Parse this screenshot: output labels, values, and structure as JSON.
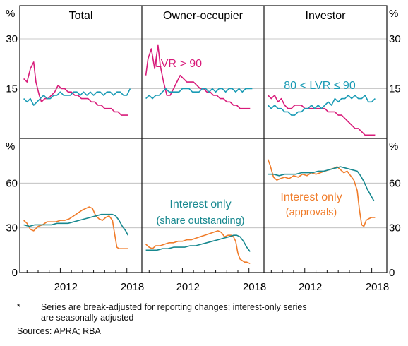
{
  "chart_data": {
    "type": "line",
    "title": "",
    "panel_titles": [
      "Total",
      "Owner-occupier",
      "Investor"
    ],
    "x_ticks": [
      "2012",
      "2018"
    ],
    "xlim": [
      2008.6,
      2019.1
    ],
    "top_row": {
      "unit": "%",
      "ylim": [
        0,
        40
      ],
      "yticks": [
        "15",
        "30"
      ],
      "grid": true,
      "annotations": [
        {
          "text": "LVR > 90",
          "panel": 1,
          "series": "lvr_gt_90"
        },
        {
          "text": "80 < LVR ≤ 90",
          "panel": 2,
          "series": "lvr_80_90"
        }
      ],
      "panels": [
        {
          "series": [
            {
              "id": "lvr_gt_90",
              "color": "#d81b7a",
              "x": [
                2008.7,
                2009.0,
                2009.3,
                2009.6,
                2009.8,
                2010.1,
                2010.3,
                2010.6,
                2010.9,
                2011.2,
                2011.5,
                2011.8,
                2012.1,
                2012.4,
                2012.7,
                2013.0,
                2013.3,
                2013.6,
                2013.9,
                2014.2,
                2014.5,
                2014.8,
                2015.1,
                2015.4,
                2015.7,
                2016.0,
                2016.3,
                2016.6,
                2016.9,
                2017.2,
                2017.5,
                2017.8,
                2018.1
              ],
              "y": [
                18,
                17,
                21,
                23,
                17,
                13,
                11,
                12,
                12,
                13,
                14,
                16,
                15,
                15,
                14,
                14,
                13,
                13,
                12,
                12,
                12,
                11,
                11,
                10,
                10,
                9,
                9,
                9,
                8,
                8,
                7,
                7,
                7
              ]
            },
            {
              "id": "lvr_80_90",
              "color": "#1a9bb5",
              "x": [
                2008.7,
                2009.0,
                2009.3,
                2009.6,
                2009.9,
                2010.2,
                2010.5,
                2010.8,
                2011.1,
                2011.4,
                2011.7,
                2012.0,
                2012.3,
                2012.6,
                2012.9,
                2013.2,
                2013.5,
                2013.8,
                2014.1,
                2014.4,
                2014.7,
                2015.0,
                2015.3,
                2015.6,
                2015.9,
                2016.2,
                2016.5,
                2016.8,
                2017.1,
                2017.4,
                2017.7,
                2018.0,
                2018.3
              ],
              "y": [
                12,
                11,
                12,
                10,
                11,
                12,
                13,
                12,
                12,
                13,
                13,
                14,
                13,
                13,
                13,
                14,
                14,
                13,
                14,
                13,
                14,
                13,
                14,
                14,
                13,
                14,
                14,
                13,
                14,
                14,
                13,
                13,
                15
              ]
            }
          ]
        },
        {
          "series": [
            {
              "id": "lvr_gt_90",
              "color": "#d81b7a",
              "x": [
                2008.7,
                2008.9,
                2009.2,
                2009.5,
                2009.8,
                2010.0,
                2010.3,
                2010.6,
                2010.9,
                2011.2,
                2011.5,
                2011.8,
                2012.1,
                2012.4,
                2012.7,
                2013.0,
                2013.3,
                2013.6,
                2013.9,
                2014.2,
                2014.5,
                2014.8,
                2015.1,
                2015.4,
                2015.7,
                2016.0,
                2016.3,
                2016.6,
                2016.9,
                2017.2,
                2017.5,
                2017.8,
                2018.1
              ],
              "y": [
                19,
                24,
                27,
                21,
                28,
                22,
                17,
                13,
                13,
                15,
                17,
                19,
                18,
                17,
                17,
                17,
                16,
                15,
                15,
                14,
                14,
                13,
                13,
                12,
                12,
                11,
                11,
                10,
                10,
                9,
                9,
                9,
                9
              ]
            },
            {
              "id": "lvr_80_90",
              "color": "#1a9bb5",
              "x": [
                2008.7,
                2009.0,
                2009.3,
                2009.6,
                2009.9,
                2010.2,
                2010.5,
                2010.8,
                2011.1,
                2011.4,
                2011.7,
                2012.0,
                2012.3,
                2012.6,
                2012.9,
                2013.2,
                2013.5,
                2013.8,
                2014.1,
                2014.4,
                2014.7,
                2015.0,
                2015.3,
                2015.6,
                2015.9,
                2016.2,
                2016.5,
                2016.8,
                2017.1,
                2017.4,
                2017.7,
                2018.0,
                2018.3
              ],
              "y": [
                12,
                13,
                12,
                13,
                13,
                14,
                15,
                14,
                14,
                14,
                14,
                15,
                15,
                15,
                14,
                14,
                14,
                15,
                15,
                14,
                15,
                14,
                15,
                15,
                14,
                15,
                15,
                14,
                15,
                14,
                15,
                15,
                15
              ]
            }
          ]
        },
        {
          "series": [
            {
              "id": "lvr_gt_90",
              "color": "#d81b7a",
              "x": [
                2008.7,
                2009.0,
                2009.3,
                2009.6,
                2009.9,
                2010.2,
                2010.5,
                2010.8,
                2011.1,
                2011.4,
                2011.7,
                2012.0,
                2012.3,
                2012.6,
                2012.9,
                2013.2,
                2013.5,
                2013.8,
                2014.1,
                2014.4,
                2014.7,
                2015.0,
                2015.3,
                2015.6,
                2015.9,
                2016.2,
                2016.5,
                2016.8,
                2017.1,
                2017.4,
                2017.7,
                2018.0,
                2018.3
              ],
              "y": [
                13,
                12,
                13,
                11,
                12,
                10,
                9,
                9,
                10,
                10,
                10,
                9,
                9,
                9,
                9,
                9,
                9,
                9,
                8,
                8,
                8,
                7,
                7,
                6,
                5,
                4,
                3,
                3,
                2,
                1,
                1,
                1,
                1
              ]
            },
            {
              "id": "lvr_80_90",
              "color": "#1a9bb5",
              "x": [
                2008.7,
                2009.0,
                2009.3,
                2009.6,
                2009.9,
                2010.2,
                2010.5,
                2010.8,
                2011.1,
                2011.4,
                2011.7,
                2012.0,
                2012.3,
                2012.6,
                2012.9,
                2013.2,
                2013.5,
                2013.8,
                2014.1,
                2014.4,
                2014.7,
                2015.0,
                2015.3,
                2015.6,
                2015.9,
                2016.2,
                2016.5,
                2016.8,
                2017.1,
                2017.4,
                2017.7,
                2018.0,
                2018.3
              ],
              "y": [
                10,
                9,
                10,
                9,
                9,
                8,
                8,
                7,
                7,
                8,
                8,
                9,
                9,
                10,
                9,
                10,
                9,
                10,
                11,
                10,
                12,
                11,
                12,
                12,
                13,
                12,
                13,
                12,
                12,
                13,
                11,
                11,
                12
              ]
            }
          ]
        }
      ]
    },
    "bottom_row": {
      "unit": "%",
      "ylim": [
        0,
        90
      ],
      "yticks": [
        "0",
        "30",
        "60"
      ],
      "grid": true,
      "annotations": [
        {
          "text": "Interest only",
          "panel": 1,
          "series": "io_share"
        },
        {
          "text": "(share outstanding)",
          "panel": 1,
          "series": "io_share"
        },
        {
          "text": "Interest only",
          "panel": 2,
          "series": "io_approvals"
        },
        {
          "text": "(approvals)",
          "panel": 2,
          "series": "io_approvals"
        }
      ],
      "panels": [
        {
          "series": [
            {
              "id": "io_approvals",
              "color": "#f07c2a",
              "x": [
                2008.7,
                2009.0,
                2009.3,
                2009.6,
                2010.0,
                2010.4,
                2010.8,
                2011.2,
                2011.6,
                2012.0,
                2012.4,
                2012.8,
                2013.2,
                2013.6,
                2014.0,
                2014.3,
                2014.6,
                2014.9,
                2015.2,
                2015.5,
                2015.8,
                2016.1,
                2016.4,
                2016.7,
                2016.9,
                2017.1,
                2017.3,
                2017.5,
                2017.8,
                2018.1
              ],
              "y": [
                35,
                33,
                29,
                28,
                31,
                32,
                34,
                34,
                34,
                35,
                35,
                36,
                38,
                40,
                42,
                43,
                44,
                43,
                38,
                36,
                35,
                37,
                38,
                35,
                26,
                17,
                16,
                16,
                16,
                16
              ]
            },
            {
              "id": "io_share",
              "color": "#17888f",
              "x": [
                2008.7,
                2009.2,
                2009.7,
                2010.2,
                2010.7,
                2011.2,
                2011.7,
                2012.2,
                2012.7,
                2013.2,
                2013.7,
                2014.2,
                2014.7,
                2015.2,
                2015.7,
                2016.2,
                2016.7,
                2017.0,
                2017.3,
                2017.6,
                2017.9,
                2018.1
              ],
              "y": [
                32,
                31,
                32,
                32,
                32,
                32,
                33,
                33,
                33,
                34,
                35,
                36,
                37,
                38,
                39,
                39,
                39,
                38,
                35,
                31,
                28,
                25
              ]
            }
          ]
        },
        {
          "series": [
            {
              "id": "io_approvals",
              "color": "#f07c2a",
              "x": [
                2008.7,
                2009.0,
                2009.3,
                2009.6,
                2010.0,
                2010.4,
                2010.8,
                2011.2,
                2011.6,
                2012.0,
                2012.4,
                2012.8,
                2013.2,
                2013.6,
                2014.0,
                2014.4,
                2014.8,
                2015.2,
                2015.5,
                2015.8,
                2016.1,
                2016.4,
                2016.6,
                2016.8,
                2017.0,
                2017.2,
                2017.4,
                2017.6,
                2017.8,
                2018.1
              ],
              "y": [
                19,
                17,
                16,
                18,
                18,
                19,
                20,
                20,
                21,
                21,
                22,
                22,
                23,
                24,
                25,
                26,
                27,
                28,
                27,
                24,
                25,
                25,
                24,
                21,
                13,
                9,
                8,
                7,
                7,
                6
              ]
            },
            {
              "id": "io_share",
              "color": "#17888f",
              "x": [
                2008.7,
                2009.2,
                2009.7,
                2010.2,
                2010.7,
                2011.2,
                2011.7,
                2012.2,
                2012.7,
                2013.2,
                2013.7,
                2014.2,
                2014.7,
                2015.2,
                2015.7,
                2016.2,
                2016.6,
                2016.9,
                2017.2,
                2017.5,
                2017.8,
                2018.1
              ],
              "y": [
                15,
                15,
                15,
                16,
                16,
                17,
                17,
                17,
                18,
                18,
                19,
                20,
                21,
                22,
                23,
                24,
                25,
                25,
                24,
                21,
                17,
                14
              ]
            }
          ]
        },
        {
          "series": [
            {
              "id": "io_approvals",
              "color": "#f07c2a",
              "x": [
                2008.7,
                2008.9,
                2009.2,
                2009.5,
                2009.8,
                2010.2,
                2010.6,
                2011.0,
                2011.4,
                2011.8,
                2012.2,
                2012.6,
                2013.0,
                2013.4,
                2013.8,
                2014.2,
                2014.6,
                2014.9,
                2015.2,
                2015.5,
                2015.8,
                2016.1,
                2016.4,
                2016.7,
                2016.9,
                2017.1,
                2017.3,
                2017.5,
                2017.7,
                2018.0,
                2018.3
              ],
              "y": [
                76,
                72,
                64,
                62,
                63,
                64,
                63,
                65,
                64,
                66,
                65,
                67,
                66,
                67,
                68,
                69,
                70,
                71,
                69,
                67,
                68,
                65,
                62,
                55,
                42,
                32,
                31,
                35,
                36,
                37,
                37
              ]
            },
            {
              "id": "io_share",
              "color": "#17888f",
              "x": [
                2008.7,
                2009.2,
                2009.7,
                2010.2,
                2010.7,
                2011.2,
                2011.7,
                2012.2,
                2012.7,
                2013.2,
                2013.7,
                2014.2,
                2014.7,
                2015.2,
                2015.7,
                2016.2,
                2016.7,
                2017.0,
                2017.3,
                2017.6,
                2017.9,
                2018.2
              ],
              "y": [
                66,
                66,
                65,
                66,
                66,
                66,
                67,
                67,
                67,
                68,
                68,
                69,
                70,
                71,
                70,
                69,
                68,
                65,
                61,
                56,
                52,
                48
              ]
            }
          ]
        }
      ]
    }
  },
  "footnote": {
    "mark": "*",
    "line1": "Series are break-adjusted for reporting changes; interest-only series",
    "line2": "are seasonally adjusted"
  },
  "sources": "Sources: APRA; RBA"
}
